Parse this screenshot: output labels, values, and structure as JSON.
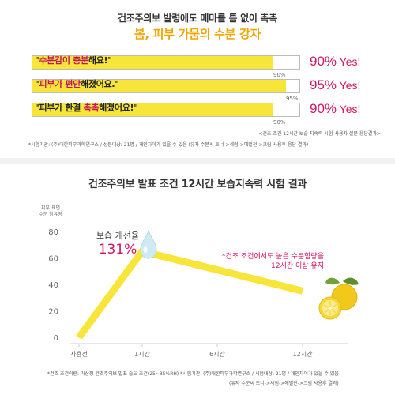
{
  "header": {
    "line1": "건조주의보 발령에도 메마를 틈 없이 촉촉",
    "line2": "봄, 피부 가뭄의 수분 강자"
  },
  "survey": {
    "items": [
      {
        "quote_open": "\"",
        "before": "",
        "highlight": "수분감이 충분",
        "after": "해요!\"",
        "value": 90,
        "mark": "90%",
        "result_num": "90%",
        "result_yes": " Yes!"
      },
      {
        "quote_open": "\"",
        "before": "",
        "highlight": "피부가 편안",
        "after": "해졌어요.\"",
        "value": 95,
        "mark": "95%",
        "result_num": "95%",
        "result_yes": " Yes!"
      },
      {
        "quote_open": "\"",
        "before": "피부가 한결 ",
        "highlight": "촉촉",
        "after": "해졌어요!\"",
        "value": 90,
        "mark": "90%",
        "result_num": "90%",
        "result_yes": " Yes!"
      }
    ],
    "note1": "<건조 조건 12시간 보습 지속력 시험-사용자 설문 응답결과>",
    "note2": "*시험기관: (주)대한피부과학연구소 / 성분대상: 21명 / 개인차이가 있을 수 있음 (유자 수분씨 토너->세럼->에멀전->크림 사용후 응답 결과)"
  },
  "chart_data": {
    "type": "line",
    "title": "건조주의보 발표 조건 12시간 보습지속력 시험 결과",
    "ylabel": "피부 표면 수분 함유량",
    "ylim": [
      0,
      80
    ],
    "yticks": [
      0,
      20,
      40,
      60,
      80
    ],
    "categories": [
      "사용전",
      "1시간",
      "6시간",
      "12시간"
    ],
    "series": [
      {
        "values": [
          0,
          65,
          null,
          35
        ]
      }
    ],
    "annotation_title": "보습 개선율",
    "annotation_value": "131%",
    "annotation_note_line1": "*건조 조건에서도 높은 수분함량을",
    "annotation_note_line2": "12시간 이상 유지",
    "colors": {
      "line": "#f7e53a",
      "accent": "#d4145a",
      "drop": "#bfe3ee"
    },
    "icons": [
      "water-drop-icon",
      "citron-fruit-icon"
    ]
  },
  "footer": {
    "line1": "*건조 조건이란: 가상청 건조주의보 발표 습도 조건(25~35%RH) *시험기관: (주)대한피부과학연구소 / 시험대상: 21명 / 개인차이가 있을 수 있음",
    "line2": "(유자 수분씨 토너->세럼->에멀전->크림 사용후 결과)"
  }
}
